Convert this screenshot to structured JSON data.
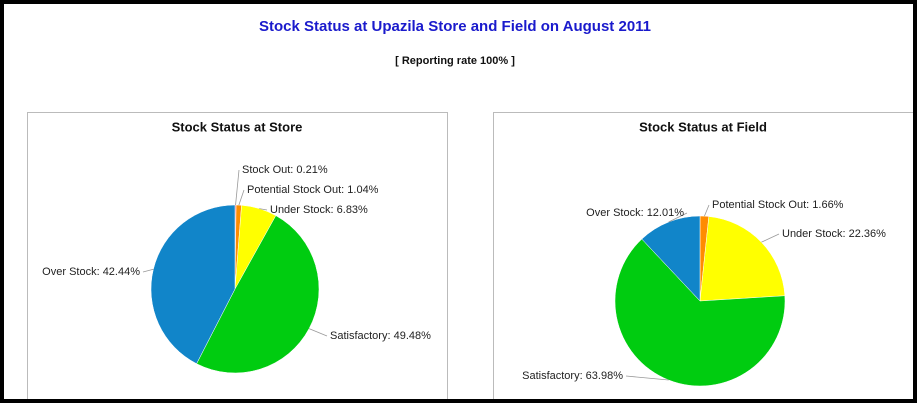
{
  "title": "Stock Status at Upazila Store and Field on August 2011",
  "subtitle": "[ Reporting rate 100% ]",
  "chart_data": [
    {
      "type": "pie",
      "title": "Stock Status at Store",
      "categories": [
        "Stock Out",
        "Potential Stock Out",
        "Under Stock",
        "Satisfactory",
        "Over Stock"
      ],
      "values": [
        0.21,
        1.04,
        6.83,
        49.48,
        42.44
      ],
      "value_labels": [
        "Stock Out: 0.21%",
        "Potential Stock Out: 1.04%",
        "Under Stock: 6.83%",
        "Satisfactory: 49.48%",
        "Over Stock: 42.44%"
      ],
      "colors": [
        "#e8101a",
        "#ff8c00",
        "#ffff00",
        "#00cc10",
        "#1185c9"
      ]
    },
    {
      "type": "pie",
      "title": "Stock Status at Field",
      "categories": [
        "Potential Stock Out",
        "Under Stock",
        "Satisfactory",
        "Over Stock"
      ],
      "values": [
        1.66,
        22.36,
        63.98,
        12.01
      ],
      "value_labels": [
        "Potential Stock Out: 1.66%",
        "Under Stock: 22.36%",
        "Satisfactory: 63.98%",
        "Over Stock: 12.01%"
      ],
      "colors": [
        "#ff8c00",
        "#ffff00",
        "#00cc10",
        "#1185c9"
      ]
    }
  ]
}
